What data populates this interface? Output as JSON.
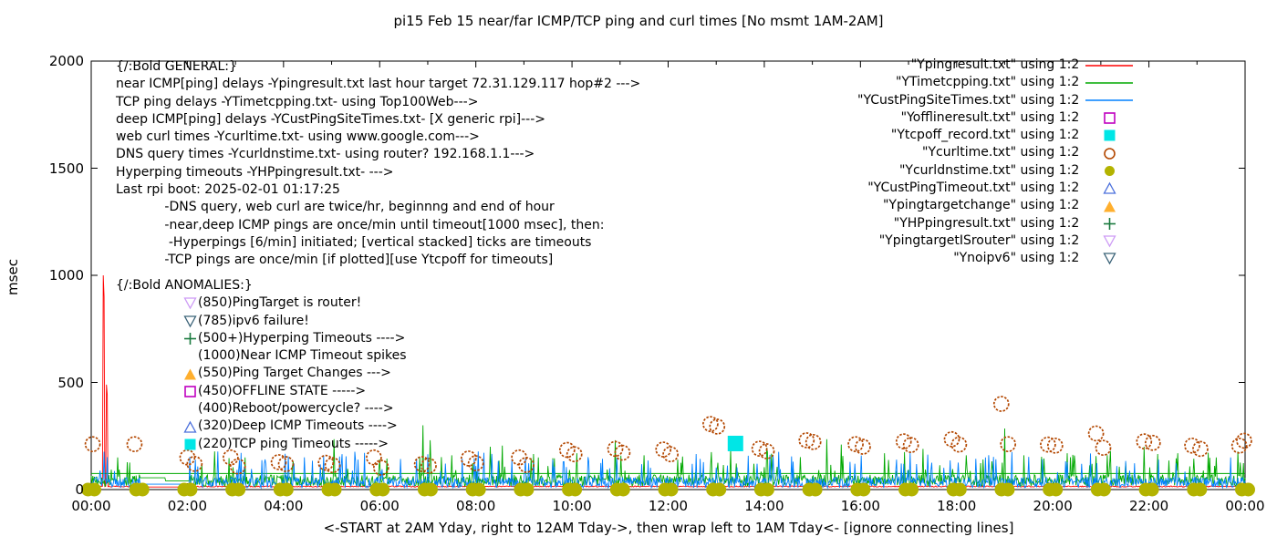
{
  "title": "pi15 Feb 15  near/far ICMP/TCP ping and curl times [No msmt 1AM-2AM]",
  "ylabel": "msec",
  "caption": "<-START at 2AM Yday, right to 12AM Tday->, then wrap left to 1AM Tday<- [ignore connecting lines]",
  "general_lines": [
    "{/:Bold GENERAL:}",
    "near ICMP[ping] delays -Ypingresult.txt last hour target 72.31.129.117 hop#2 --->",
    "TCP ping delays -YTimetcpping.txt- using Top100Web--->",
    "deep ICMP[ping] delays -YCustPingSiteTimes.txt- [X generic rpi]--->",
    "web curl times -Ycurltime.txt- using www.google.com--->",
    "DNS query times -Ycurldnstime.txt- using router? 192.168.1.1--->",
    "Hyperping timeouts -YHPpingresult.txt- --->",
    "Last rpi boot: 2025-02-01 01:17:25",
    "            -DNS query, web curl are twice/hr, beginnng and end of hour",
    "            -near,deep ICMP pings are once/min until timeout[1000 msec], then:",
    "             -Hyperpings [6/min] initiated; [vertical stacked] ticks are timeouts",
    "            -TCP pings are once/min [if plotted][use Ytcpoff for timeouts]"
  ],
  "anomalies": [
    {
      "marker": "none",
      "color": "",
      "text": "{/:Bold ANOMALIES:}",
      "head": true
    },
    {
      "marker": "tri-down-open",
      "color": "#cd9bf5",
      "text": "(850)PingTarget is router!"
    },
    {
      "marker": "tri-down-open",
      "color": "#3b6378",
      "text": "(785)ipv6 failure!"
    },
    {
      "marker": "plus",
      "color": "#1b7a3f",
      "text": "(500+)Hyperping Timeouts ---->"
    },
    {
      "marker": "none",
      "color": "",
      "text": "(1000)Near ICMP Timeout spikes"
    },
    {
      "marker": "tri-up-filled",
      "color": "#ffaf2e",
      "text": "(550)Ping Target Changes --->"
    },
    {
      "marker": "square-open",
      "color": "#bf00bf",
      "text": "(450)OFFLINE STATE ----->"
    },
    {
      "marker": "none",
      "color": "",
      "text": "(400)Reboot/powercycle? ---->"
    },
    {
      "marker": "tri-up-open",
      "color": "#4a6fdc",
      "text": "(320)Deep ICMP Timeouts ---->"
    },
    {
      "marker": "square-filled",
      "color": "#00e6e6",
      "text": "(220)TCP ping Timeouts ----->"
    }
  ],
  "legend": [
    {
      "label": "\"Ypingresult.txt\" using 1:2",
      "marker": "line",
      "color": "#ff0000"
    },
    {
      "label": "\"YTimetcpping.txt\" using 1:2",
      "marker": "line",
      "color": "#00a800"
    },
    {
      "label": "\"YCustPingSiteTimes.txt\" using 1:2",
      "marker": "line",
      "color": "#0080ff"
    },
    {
      "label": "\"Yofflineresult.txt\" using 1:2",
      "marker": "square-open",
      "color": "#bf00bf"
    },
    {
      "label": "\"Ytcpoff_record.txt\" using 1:2",
      "marker": "square-filled",
      "color": "#00e6e6"
    },
    {
      "label": "\"Ycurltime.txt\" using 1:2",
      "marker": "circle-open",
      "color": "#b34700"
    },
    {
      "label": "\"Ycurldnstime.txt\" using 1:2",
      "marker": "circle-filled",
      "color": "#b3b300"
    },
    {
      "label": "\"YCustPingTimeout.txt\" using 1:2",
      "marker": "tri-up-open",
      "color": "#4a6fdc"
    },
    {
      "label": "\"Ypingtargetchange\" using 1:2",
      "marker": "tri-up-filled",
      "color": "#ffaf2e"
    },
    {
      "label": "\"YHPpingresult.txt\" using 1:2",
      "marker": "plus",
      "color": "#1b7a3f"
    },
    {
      "label": "\"YpingtargetISrouter\" using 1:2",
      "marker": "tri-down-open",
      "color": "#cd9bf5"
    },
    {
      "label": "\"Ynoipv6\" using 1:2",
      "marker": "tri-down-open",
      "color": "#3b6378"
    }
  ],
  "chart_data": {
    "type": "line",
    "title": "pi15 Feb 15  near/far ICMP/TCP ping and curl times [No msmt 1AM-2AM]",
    "xlabel": "<-START at 2AM Yday, right to 12AM Tday->, then wrap left to 1AM Tday<- [ignore connecting lines]",
    "ylabel": "msec",
    "xlim": [
      0,
      24
    ],
    "ylim": [
      0,
      2000
    ],
    "grid": false,
    "legend_position": "top-right",
    "xtick_labels": [
      "00:00",
      "02:00",
      "04:00",
      "06:00",
      "08:00",
      "10:00",
      "12:00",
      "14:00",
      "16:00",
      "18:00",
      "20:00",
      "22:00",
      "00:00"
    ],
    "ytick_values": [
      0,
      500,
      1000,
      1500,
      2000
    ],
    "measurement_gap_hours": [
      1.0,
      2.05
    ],
    "series": [
      {
        "name": "Ypingresult.txt",
        "color": "#ff0000",
        "kind": "noisy-line",
        "baseline": 12,
        "noise": 5,
        "spikes": [
          [
            0.25,
            1000
          ],
          [
            0.32,
            490
          ]
        ]
      },
      {
        "name": "YTimetcpping.txt",
        "color": "#00a800",
        "kind": "noisy-line",
        "baseline": 15,
        "noise": 55,
        "flatline": 75,
        "gap_levels": [
          [
            1.0,
            1.55,
            55
          ],
          [
            1.55,
            2.05,
            40
          ]
        ],
        "spikes": [
          [
            0.55,
            150
          ],
          [
            2.3,
            120
          ],
          [
            3.2,
            150
          ],
          [
            4.2,
            130
          ],
          [
            5.05,
            235
          ],
          [
            6.0,
            140
          ],
          [
            6.9,
            300
          ],
          [
            7.05,
            230
          ],
          [
            7.5,
            160
          ],
          [
            8.3,
            200
          ],
          [
            8.55,
            205
          ],
          [
            9.3,
            150
          ],
          [
            10.1,
            170
          ],
          [
            10.9,
            230
          ],
          [
            11.5,
            160
          ],
          [
            12.2,
            140
          ],
          [
            12.9,
            175
          ],
          [
            13.3,
            190
          ],
          [
            14.05,
            195
          ],
          [
            15.3,
            235
          ],
          [
            15.6,
            210
          ],
          [
            16.5,
            170
          ],
          [
            17.3,
            190
          ],
          [
            18.2,
            160
          ],
          [
            19.0,
            285
          ],
          [
            19.4,
            160
          ],
          [
            20.3,
            170
          ],
          [
            21.2,
            180
          ],
          [
            21.9,
            200
          ],
          [
            22.6,
            170
          ],
          [
            23.4,
            150
          ]
        ]
      },
      {
        "name": "YCustPingSiteTimes.txt",
        "color": "#0080ff",
        "kind": "noisy-line",
        "baseline": 8,
        "noise": 50,
        "gap_levels": [
          [
            1.0,
            2.05,
            25
          ]
        ],
        "spikes": [
          [
            3.6,
            120
          ],
          [
            5.5,
            130
          ],
          [
            8.0,
            110
          ],
          [
            9.6,
            140
          ],
          [
            12.5,
            120
          ],
          [
            14.6,
            130
          ],
          [
            16.9,
            120
          ],
          [
            18.6,
            150
          ],
          [
            20.6,
            120
          ],
          [
            22.2,
            140
          ],
          [
            23.7,
            150
          ]
        ]
      }
    ],
    "markers": [
      {
        "name": "Yofflineresult.txt",
        "marker": "square-open",
        "color": "#bf00bf",
        "points": []
      },
      {
        "name": "Ytcpoff_record.txt",
        "marker": "square-filled",
        "color": "#00e6e6",
        "points": [
          [
            13.4,
            215
          ]
        ]
      },
      {
        "name": "Ycurltime.txt",
        "marker": "circle-open",
        "color": "#b34700",
        "points": [
          [
            0.03,
            212
          ],
          [
            0.9,
            212
          ],
          [
            2.0,
            150
          ],
          [
            2.15,
            120
          ],
          [
            2.9,
            150
          ],
          [
            3.05,
            108
          ],
          [
            3.9,
            128
          ],
          [
            4.05,
            119
          ],
          [
            4.88,
            125
          ],
          [
            5.02,
            114
          ],
          [
            5.88,
            150
          ],
          [
            6.03,
            102
          ],
          [
            6.88,
            119
          ],
          [
            7.02,
            111
          ],
          [
            7.85,
            145
          ],
          [
            8.0,
            123
          ],
          [
            8.9,
            150
          ],
          [
            9.05,
            115
          ],
          [
            9.9,
            185
          ],
          [
            10.05,
            165
          ],
          [
            10.9,
            190
          ],
          [
            11.05,
            172
          ],
          [
            11.9,
            187
          ],
          [
            12.05,
            165
          ],
          [
            12.88,
            306
          ],
          [
            13.02,
            294
          ],
          [
            13.9,
            191
          ],
          [
            14.05,
            179
          ],
          [
            14.88,
            230
          ],
          [
            15.02,
            222
          ],
          [
            15.9,
            212
          ],
          [
            16.05,
            200
          ],
          [
            16.9,
            225
          ],
          [
            17.05,
            208
          ],
          [
            17.9,
            235
          ],
          [
            18.05,
            210
          ],
          [
            18.93,
            400
          ],
          [
            19.07,
            212
          ],
          [
            19.9,
            210
          ],
          [
            20.05,
            205
          ],
          [
            20.9,
            262
          ],
          [
            21.05,
            195
          ],
          [
            21.9,
            225
          ],
          [
            22.08,
            218
          ],
          [
            22.9,
            205
          ],
          [
            23.07,
            190
          ],
          [
            23.88,
            205
          ],
          [
            23.98,
            228
          ]
        ]
      },
      {
        "name": "Ycurldnstime.txt",
        "marker": "circle-filled-double",
        "color": "#b3b300",
        "points": [
          [
            0,
            0
          ],
          [
            1,
            0
          ],
          [
            2,
            0
          ],
          [
            3,
            0
          ],
          [
            4,
            0
          ],
          [
            5,
            0
          ],
          [
            6,
            0
          ],
          [
            7,
            0
          ],
          [
            8,
            0
          ],
          [
            9,
            0
          ],
          [
            10,
            0
          ],
          [
            11,
            0
          ],
          [
            12,
            0
          ],
          [
            13,
            0
          ],
          [
            14,
            0
          ],
          [
            15,
            0
          ],
          [
            16,
            0
          ],
          [
            17,
            0
          ],
          [
            18,
            0
          ],
          [
            19,
            0
          ],
          [
            20,
            0
          ],
          [
            21,
            0
          ],
          [
            22,
            0
          ],
          [
            23,
            0
          ],
          [
            24,
            0
          ]
        ]
      },
      {
        "name": "YCustPingTimeout.txt",
        "marker": "tri-up-open",
        "color": "#4a6fdc",
        "points": []
      },
      {
        "name": "Ypingtargetchange",
        "marker": "tri-up-filled",
        "color": "#ffaf2e",
        "points": []
      },
      {
        "name": "YHPpingresult.txt",
        "marker": "plus",
        "color": "#1b7a3f",
        "points": []
      },
      {
        "name": "YpingtargetISrouter",
        "marker": "tri-down-open",
        "color": "#cd9bf5",
        "points": []
      },
      {
        "name": "Ynoipv6",
        "marker": "tri-down-open",
        "color": "#3b6378",
        "points": []
      }
    ]
  }
}
